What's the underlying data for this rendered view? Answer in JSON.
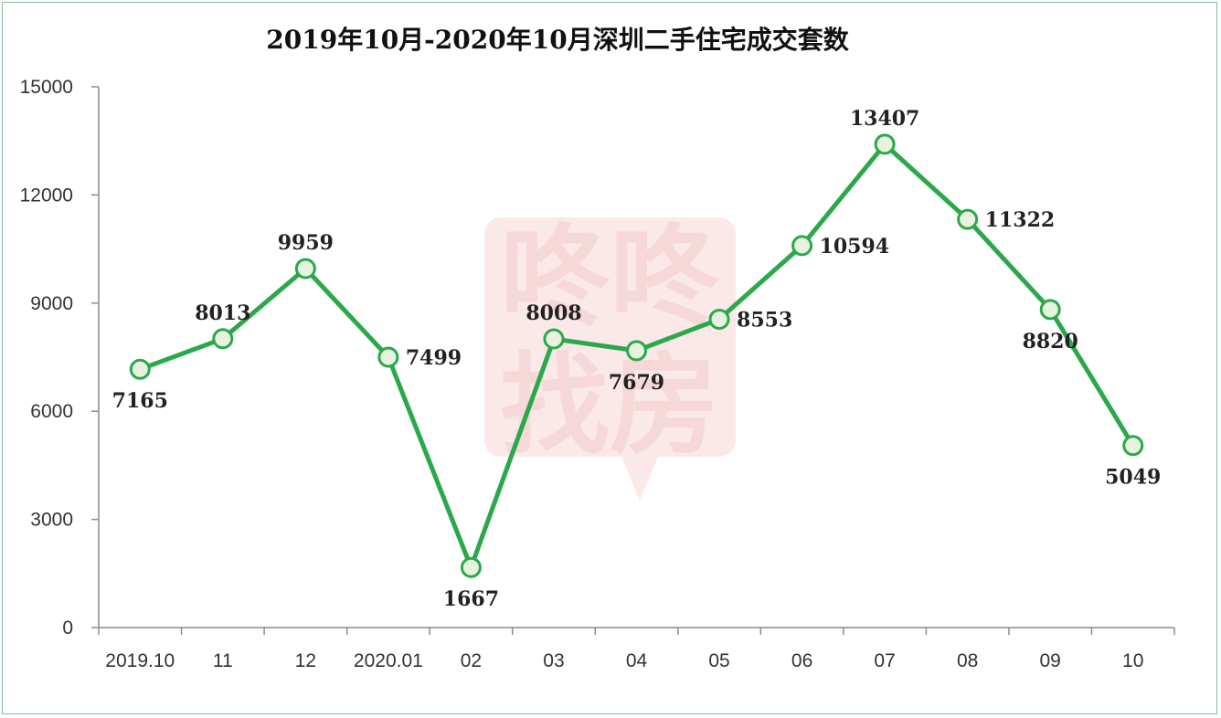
{
  "chart_data": {
    "type": "line",
    "title": "2019年10月-2020年10月深圳二手住宅成交套数",
    "xlabel": "",
    "ylabel": "",
    "categories": [
      "2019.10",
      "11",
      "12",
      "2020.01",
      "02",
      "03",
      "04",
      "05",
      "06",
      "07",
      "08",
      "09",
      "10"
    ],
    "values": [
      7165,
      8013,
      9959,
      7499,
      1667,
      8008,
      7679,
      8553,
      10594,
      13407,
      11322,
      8820,
      5049
    ],
    "ylim": [
      0,
      15000
    ],
    "yticks": [
      "0",
      "3000",
      "6000",
      "9000",
      "12000",
      "15000"
    ],
    "grid": false,
    "legend": "none",
    "colors": {
      "line": "#2ba84a",
      "marker_fill": "#e8f3df",
      "marker_stroke": "#2ba84a",
      "axis": "#8c8c8c",
      "frame": "#7fbf9a",
      "watermark": "#f7d8d8"
    },
    "watermark": {
      "text_top": "咚咚",
      "text_bottom": "找房"
    }
  }
}
